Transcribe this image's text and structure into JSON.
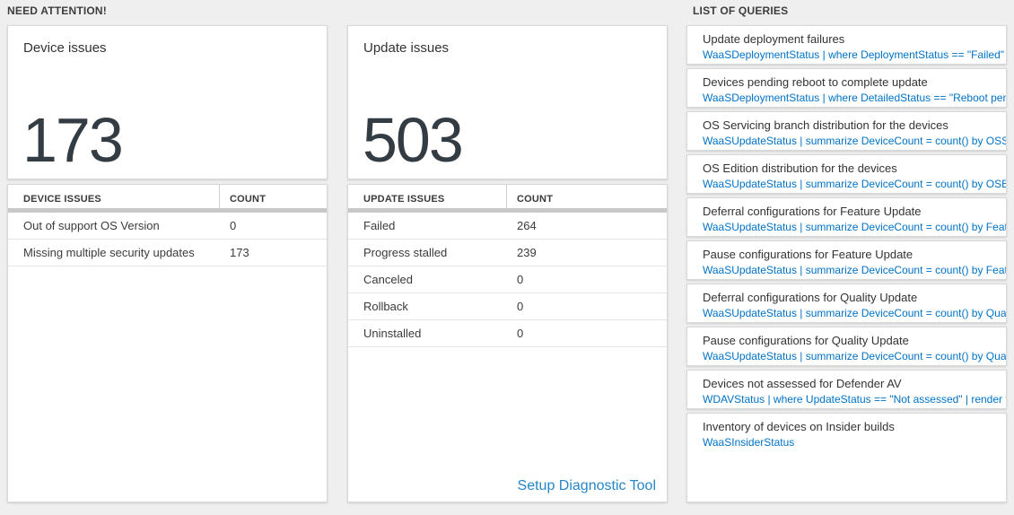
{
  "colors": {
    "background": "#efefef",
    "card_background": "#ffffff",
    "query_code_blue": "#0072c6",
    "link_blue": "#2586c9",
    "stat_value_color": "#333b43",
    "table_header_bar": "#c8c8c8"
  },
  "sections": {
    "need_attention_label": "NEED ATTENTION!",
    "list_of_queries_label": "LIST OF QUERIES"
  },
  "device_card": {
    "title": "Device issues",
    "value": "173"
  },
  "update_card": {
    "title": "Update issues",
    "value": "503"
  },
  "device_table": {
    "headers": [
      "DEVICE ISSUES",
      "COUNT"
    ],
    "rows": [
      [
        "Out of support OS Version",
        "0"
      ],
      [
        "Missing multiple security updates",
        "173"
      ]
    ]
  },
  "update_table": {
    "headers": [
      "UPDATE ISSUES",
      "COUNT"
    ],
    "rows": [
      [
        "Failed",
        "264"
      ],
      [
        "Progress stalled",
        "239"
      ],
      [
        "Canceled",
        "0"
      ],
      [
        "Rollback",
        "0"
      ],
      [
        "Uninstalled",
        "0"
      ]
    ],
    "link_label": "Setup Diagnostic Tool"
  },
  "queries": [
    {
      "title": "Update deployment failures",
      "query": "WaaSDeploymentStatus | where DeploymentStatus == \"Failed\" |..."
    },
    {
      "title": "Devices pending reboot to complete update",
      "query": "WaaSDeploymentStatus | where DetailedStatus == \"Reboot pend..."
    },
    {
      "title": "OS Servicing branch distribution for the devices",
      "query": "WaaSUpdateStatus | summarize DeviceCount = count() by OSSer..."
    },
    {
      "title": "OS Edition distribution for the devices",
      "query": "WaaSUpdateStatus | summarize DeviceCount = count() by OSEdit..."
    },
    {
      "title": "Deferral configurations for Feature Update",
      "query": "WaaSUpdateStatus | summarize DeviceCount = count() by Featur..."
    },
    {
      "title": "Pause configurations for Feature Update",
      "query": "WaaSUpdateStatus | summarize DeviceCount = count() by Featur..."
    },
    {
      "title": "Deferral configurations for Quality Update",
      "query": "WaaSUpdateStatus | summarize DeviceCount = count() by Qualit..."
    },
    {
      "title": "Pause configurations for Quality Update",
      "query": "WaaSUpdateStatus | summarize DeviceCount = count() by Qualit..."
    },
    {
      "title": "Devices not assessed for Defender AV",
      "query": "WDAVStatus | where UpdateStatus == \"Not assessed\" | render ta..."
    },
    {
      "title": "Inventory of devices on Insider builds",
      "query": "WaaSInsiderStatus"
    }
  ]
}
